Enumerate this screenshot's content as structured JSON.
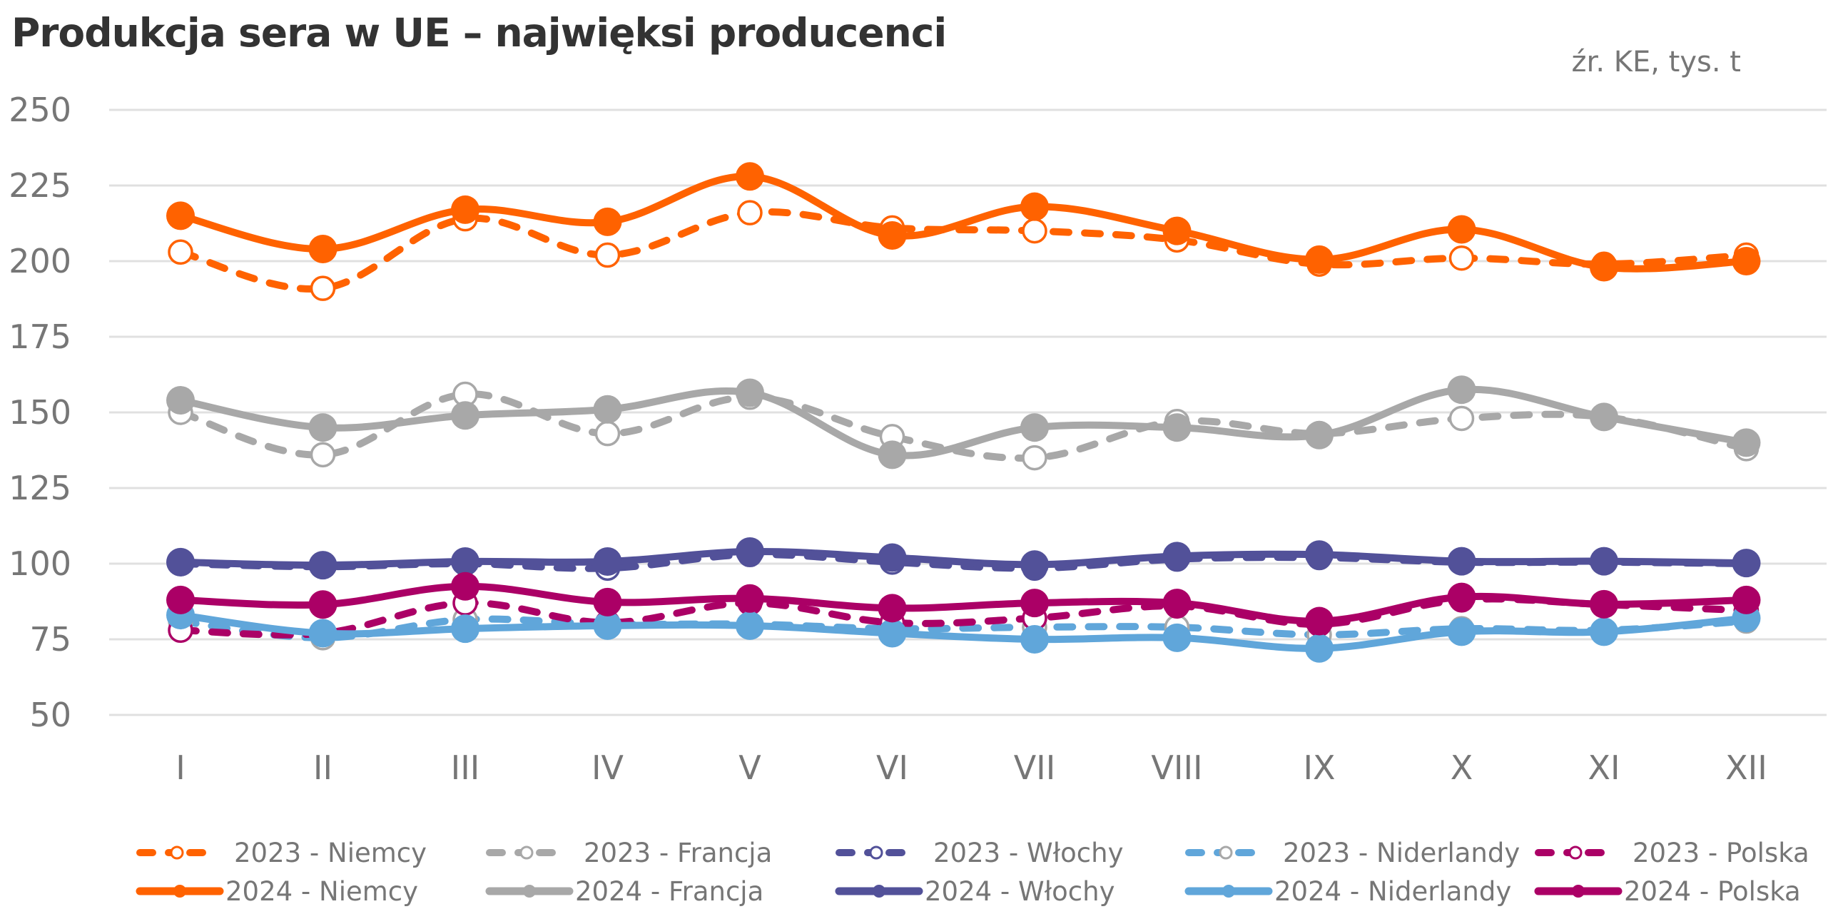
{
  "header": {
    "title": "Produkcja sera w UE – najwięksi producenci",
    "source": "źr. KE, tys. t"
  },
  "chart_data": {
    "type": "line",
    "title": "Produkcja sera w UE – najwięksi producenci",
    "subtitle": "źr. KE, tys. t",
    "xlabel": "",
    "ylabel": "tys. t",
    "ylim": [
      50,
      250
    ],
    "yticks": [
      50,
      75,
      100,
      125,
      150,
      175,
      200,
      225,
      250
    ],
    "grid": true,
    "smooth": true,
    "legend_position": "bottom",
    "categories": [
      "I",
      "II",
      "III",
      "IV",
      "V",
      "VI",
      "VII",
      "VIII",
      "IX",
      "X",
      "XI",
      "XII"
    ],
    "series": [
      {
        "name": "2023 - Niemcy",
        "year": 2023,
        "country": "Niemcy",
        "style": "dashed",
        "marker": "hollow",
        "color": "#FF6200",
        "values": [
          203,
          191,
          214,
          202,
          216,
          211,
          210,
          207,
          199,
          201,
          199,
          202
        ]
      },
      {
        "name": "2023 - Francja",
        "year": 2023,
        "country": "Francja",
        "style": "dashed",
        "marker": "hollow",
        "color": "#A8A8A8",
        "values": [
          150,
          136,
          156,
          143,
          155,
          142,
          135,
          147,
          143,
          148,
          148.5,
          138
        ]
      },
      {
        "name": "2023 - Włochy",
        "year": 2023,
        "country": "Włochy",
        "style": "dashed",
        "marker": "hollow",
        "color": "#525199",
        "values": [
          100,
          99,
          100,
          98.5,
          103,
          100.5,
          98.5,
          101.5,
          102,
          100.5,
          100.5,
          100
        ]
      },
      {
        "name": "2023 - Niderlandy",
        "year": 2023,
        "country": "Niderlandy",
        "style": "dashed",
        "marker": "hollow",
        "color": "#60A6DA",
        "marker_color": "#A8A8A8",
        "values": [
          81,
          75.5,
          81.5,
          80,
          80,
          78.5,
          79,
          79,
          76.5,
          78.5,
          78,
          81
        ]
      },
      {
        "name": "2023 - Polska",
        "year": 2023,
        "country": "Polska",
        "style": "dashed",
        "marker": "hollow",
        "color": "#AB0066",
        "values": [
          78,
          77,
          87,
          80.5,
          87,
          80.5,
          82,
          86,
          80,
          88,
          86.5,
          84.5
        ]
      },
      {
        "name": "2024 - Niemcy",
        "year": 2024,
        "country": "Niemcy",
        "style": "solid",
        "marker": "filled",
        "color": "#FF6200",
        "values": [
          215,
          204,
          217,
          213,
          228,
          208.5,
          218,
          210,
          200.5,
          210.5,
          198,
          200
        ]
      },
      {
        "name": "2024 - Francja",
        "year": 2024,
        "country": "Francja",
        "style": "solid",
        "marker": "filled",
        "color": "#A8A8A8",
        "values": [
          154,
          145,
          149,
          151,
          156.5,
          136,
          145,
          145,
          142.5,
          157.5,
          148.5,
          140
        ]
      },
      {
        "name": "2024 - Włochy",
        "year": 2024,
        "country": "Włochy",
        "style": "solid",
        "marker": "filled",
        "color": "#525199",
        "values": [
          100.5,
          99.5,
          100.7,
          100.7,
          104,
          102,
          99.7,
          102.5,
          103,
          100.8,
          100.8,
          100.2
        ]
      },
      {
        "name": "2024 - Niderlandy",
        "year": 2024,
        "country": "Niderlandy",
        "style": "solid",
        "marker": "filled",
        "color": "#60A6DA",
        "values": [
          83,
          77,
          78.5,
          79.5,
          79.5,
          77,
          75,
          75.5,
          72,
          77.5,
          77.5,
          82
        ]
      },
      {
        "name": "2024 - Polska",
        "year": 2024,
        "country": "Polska",
        "style": "solid",
        "marker": "filled",
        "color": "#AB0066",
        "values": [
          88,
          86.5,
          92.5,
          87.3,
          88.5,
          85.3,
          87,
          87,
          81,
          89,
          86.6,
          88
        ]
      }
    ]
  },
  "colors": {
    "title": "#333333",
    "axis_text": "#767676",
    "grid": "#E0E0E0"
  }
}
